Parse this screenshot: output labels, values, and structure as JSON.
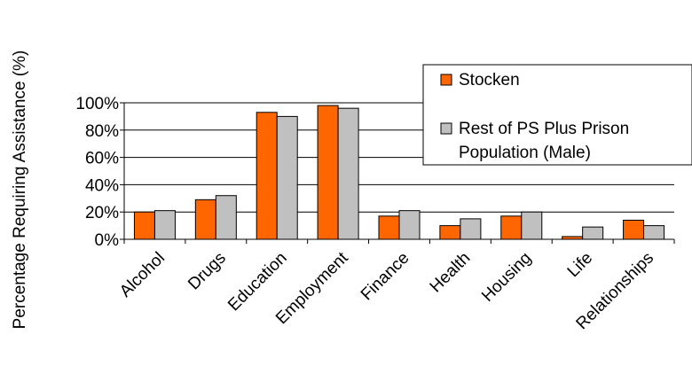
{
  "chart_data": {
    "type": "bar",
    "title": "",
    "xlabel": "",
    "ylabel": "Percentage Requiring Assistance (%)",
    "ylim": [
      0,
      100
    ],
    "yticks": [
      0,
      20,
      40,
      60,
      80,
      100
    ],
    "ytick_labels": [
      "0%",
      "20%",
      "40%",
      "60%",
      "80%",
      "100%"
    ],
    "grid": true,
    "legend_position": "top-right",
    "categories": [
      "Alcohol",
      "Drugs",
      "Education",
      "Employment",
      "Finance",
      "Health",
      "Housing",
      "Life",
      "Relationships"
    ],
    "series": [
      {
        "name": "Stocken",
        "color": "#ff6600",
        "values": [
          20,
          29,
          93,
          98,
          17,
          10,
          17,
          2,
          14
        ]
      },
      {
        "name": "Rest of PS Plus Prison Population (Male)",
        "color": "#c0c0c0",
        "values": [
          21,
          32,
          90,
          96,
          21,
          15,
          20,
          9,
          10
        ]
      }
    ]
  },
  "legend": {
    "line1": "Stocken",
    "line2a": "Rest of PS Plus Prison",
    "line2b": "Population (Male)"
  }
}
